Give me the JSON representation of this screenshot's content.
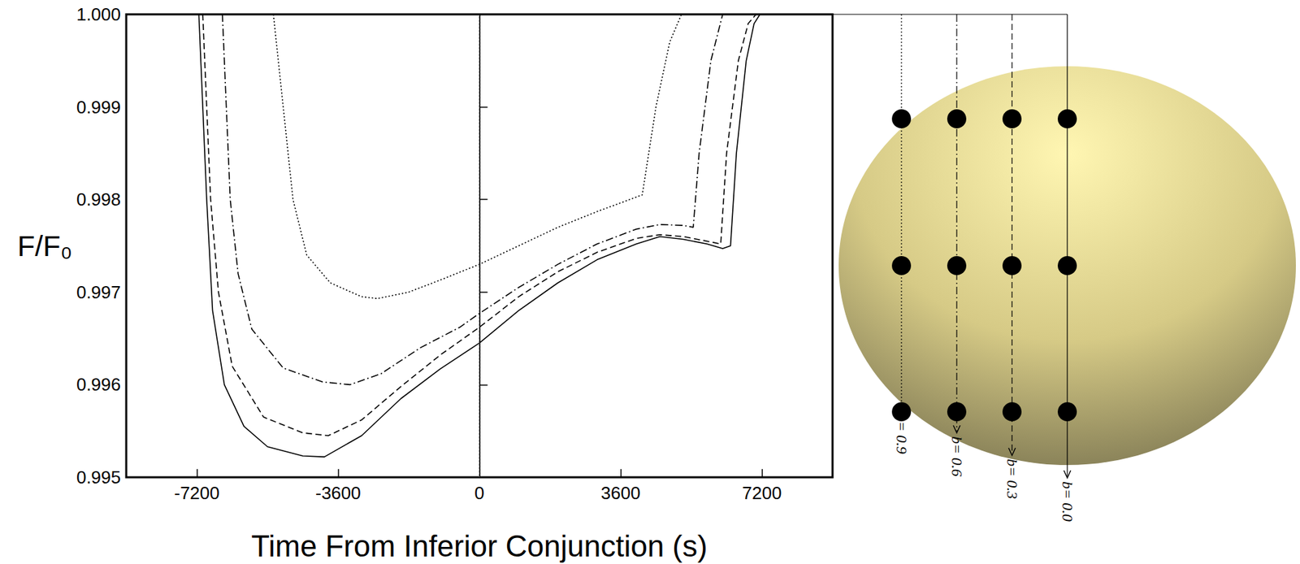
{
  "chart_data": {
    "type": "line",
    "x_label": "Time From Inferior Conjunction (s)",
    "y_label": "F/F₀",
    "xlim": [
      -9000,
      9000
    ],
    "xticks": [
      -7200,
      -3600,
      0,
      3600,
      7200
    ],
    "ylim": [
      0.995,
      1.0
    ],
    "yticks": [
      0.995,
      0.996,
      0.997,
      0.998,
      0.999,
      {
        "value": 1.0,
        "label": "1.000"
      }
    ],
    "vlines": [
      0
    ],
    "grid": false,
    "series": [
      {
        "name": "b= 0.0",
        "b": 0.0,
        "color": "#000000",
        "line_style": "solid",
        "x": [
          -7200,
          -7150,
          -6950,
          -6800,
          -6500,
          -6000,
          -5400,
          -4500,
          -3950,
          -3000,
          -2000,
          -1000,
          0,
          1000,
          2000,
          3000,
          4000,
          4600,
          5200,
          5800,
          6200,
          6400,
          6550,
          6800,
          7000,
          7150
        ],
        "values": [
          1.0,
          1.0,
          0.998,
          0.9968,
          0.996,
          0.99555,
          0.99533,
          0.99523,
          0.99522,
          0.99545,
          0.99585,
          0.99617,
          0.99645,
          0.9968,
          0.9971,
          0.99735,
          0.99752,
          0.9976,
          0.99757,
          0.99752,
          0.99747,
          0.9975,
          0.9985,
          0.9995,
          0.9999,
          1.0
        ]
      },
      {
        "name": "b= 0.3",
        "b": 0.3,
        "color": "#000000",
        "line_style": "dashed",
        "x": [
          -7050,
          -6850,
          -6650,
          -6300,
          -5500,
          -4500,
          -3850,
          -3000,
          -2000,
          -1000,
          0,
          1000,
          2000,
          3000,
          4000,
          4600,
          5200,
          5800,
          6150,
          6300,
          6600,
          6850,
          7050
        ],
        "values": [
          1.0,
          0.998,
          0.997,
          0.9962,
          0.99565,
          0.99548,
          0.99545,
          0.99562,
          0.99598,
          0.99632,
          0.99662,
          0.99695,
          0.99722,
          0.99743,
          0.99758,
          0.99762,
          0.9976,
          0.99755,
          0.99752,
          0.9985,
          0.9995,
          0.9999,
          1.0
        ]
      },
      {
        "name": "b= 0.6",
        "b": 0.6,
        "color": "#000000",
        "line_style": "dashdot",
        "x": [
          -6550,
          -6350,
          -6150,
          -5800,
          -5000,
          -4000,
          -3300,
          -2500,
          -1500,
          -500,
          0,
          1000,
          2000,
          3000,
          4000,
          4600,
          5200,
          5450,
          5600,
          5900,
          6200
        ],
        "values": [
          1.0,
          0.998,
          0.9972,
          0.9966,
          0.99618,
          0.99603,
          0.996,
          0.99612,
          0.9964,
          0.99662,
          0.99677,
          0.99705,
          0.9973,
          0.99752,
          0.99768,
          0.99773,
          0.99772,
          0.9977,
          0.9985,
          0.9995,
          1.0
        ]
      },
      {
        "name": "b= 0.9",
        "b": 0.9,
        "color": "#000000",
        "line_style": "dotted",
        "x": [
          -5250,
          -5000,
          -4750,
          -4400,
          -3800,
          -3000,
          -2600,
          -1800,
          -1000,
          0,
          1000,
          2000,
          3000,
          4150,
          4500,
          4850,
          5150
        ],
        "values": [
          1.0,
          0.999,
          0.998,
          0.9974,
          0.9971,
          0.99695,
          0.99693,
          0.997,
          0.99713,
          0.9973,
          0.9975,
          0.9977,
          0.99787,
          0.99805,
          0.999,
          0.9997,
          1.0
        ]
      }
    ]
  }
}
